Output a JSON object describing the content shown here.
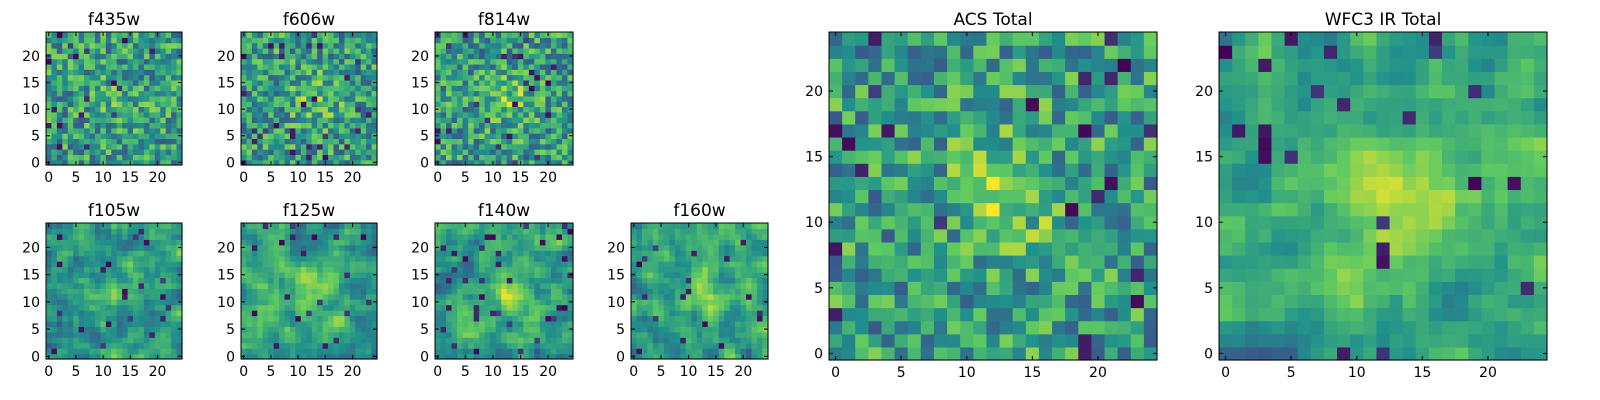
{
  "figure": {
    "colormap": "viridis",
    "colormap_stops": [
      "#440154",
      "#3b528b",
      "#21918c",
      "#5ec962",
      "#fde725"
    ]
  },
  "chart_data": [
    {
      "type": "heatmap",
      "title": "f435w",
      "grid_size": 25,
      "x_ticks": [
        0,
        5,
        10,
        15,
        20
      ],
      "y_ticks": [
        0,
        5,
        10,
        15,
        20
      ],
      "xlim": [
        0,
        24
      ],
      "ylim": [
        0,
        24
      ]
    },
    {
      "type": "heatmap",
      "title": "f606w",
      "grid_size": 25,
      "x_ticks": [
        0,
        5,
        10,
        15,
        20
      ],
      "y_ticks": [
        0,
        5,
        10,
        15,
        20
      ],
      "xlim": [
        0,
        24
      ],
      "ylim": [
        0,
        24
      ]
    },
    {
      "type": "heatmap",
      "title": "f814w",
      "grid_size": 25,
      "x_ticks": [
        0,
        5,
        10,
        15,
        20
      ],
      "y_ticks": [
        0,
        5,
        10,
        15,
        20
      ],
      "xlim": [
        0,
        24
      ],
      "ylim": [
        0,
        24
      ]
    },
    {
      "type": "heatmap",
      "title": "f105w",
      "grid_size": 25,
      "x_ticks": [
        0,
        5,
        10,
        15,
        20
      ],
      "y_ticks": [
        0,
        5,
        10,
        15,
        20
      ],
      "xlim": [
        0,
        24
      ],
      "ylim": [
        0,
        24
      ]
    },
    {
      "type": "heatmap",
      "title": "f125w",
      "grid_size": 25,
      "x_ticks": [
        0,
        5,
        10,
        15,
        20
      ],
      "y_ticks": [
        0,
        5,
        10,
        15,
        20
      ],
      "xlim": [
        0,
        24
      ],
      "ylim": [
        0,
        24
      ]
    },
    {
      "type": "heatmap",
      "title": "f140w",
      "grid_size": 25,
      "x_ticks": [
        0,
        5,
        10,
        15,
        20
      ],
      "y_ticks": [
        0,
        5,
        10,
        15,
        20
      ],
      "xlim": [
        0,
        24
      ],
      "ylim": [
        0,
        24
      ]
    },
    {
      "type": "heatmap",
      "title": "f160w",
      "grid_size": 25,
      "x_ticks": [
        0,
        5,
        10,
        15,
        20
      ],
      "y_ticks": [
        0,
        5,
        10,
        15,
        20
      ],
      "xlim": [
        0,
        24
      ],
      "ylim": [
        0,
        24
      ]
    },
    {
      "type": "heatmap",
      "title": "ACS Total",
      "grid_size": 25,
      "x_ticks": [
        0,
        5,
        10,
        15,
        20
      ],
      "y_ticks": [
        0,
        5,
        10,
        15,
        20
      ],
      "xlim": [
        0,
        24
      ],
      "ylim": [
        0,
        24
      ]
    },
    {
      "type": "heatmap",
      "title": "WFC3 IR Total",
      "grid_size": 25,
      "x_ticks": [
        0,
        5,
        10,
        15,
        20
      ],
      "y_ticks": [
        0,
        5,
        10,
        15,
        20
      ],
      "xlim": [
        0,
        24
      ],
      "ylim": [
        0,
        24
      ]
    }
  ]
}
